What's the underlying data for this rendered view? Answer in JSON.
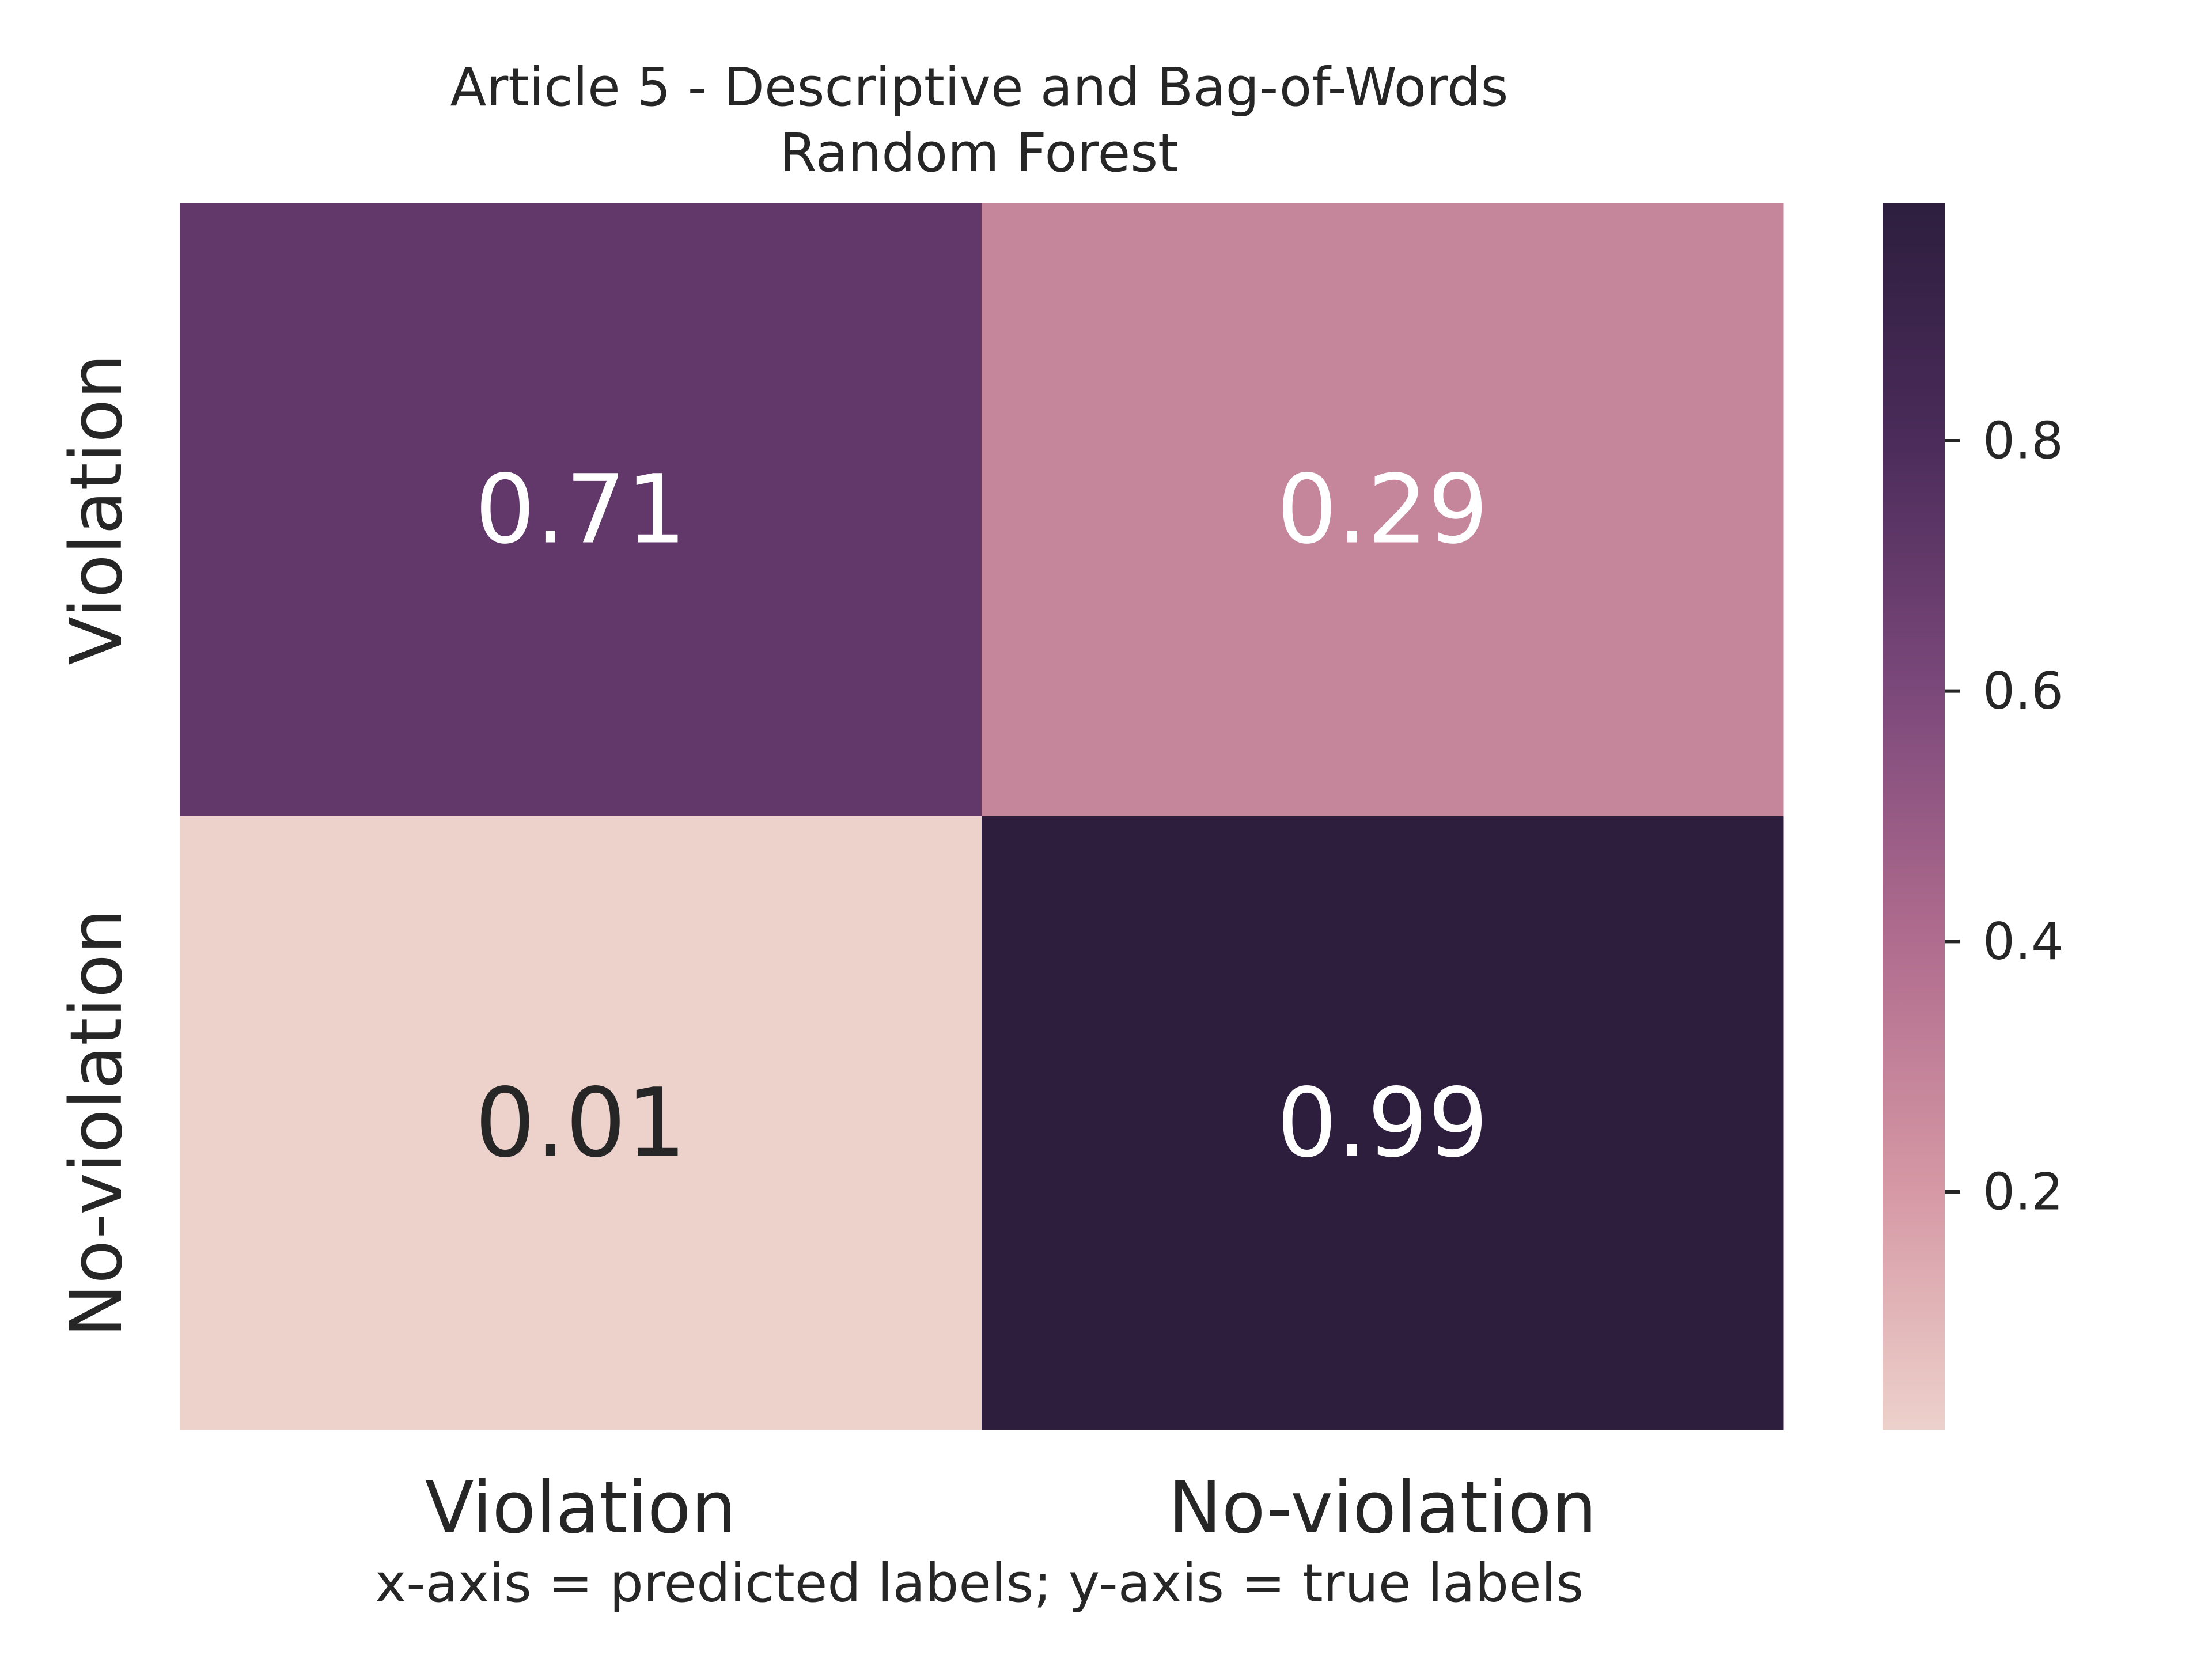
{
  "chart_data": {
    "type": "heatmap",
    "title": "Article 5 - Descriptive and Bag-of-Words",
    "subtitle": "Random Forest",
    "xlabel": "x-axis = predicted labels; y-axis = true labels",
    "ylabel": "",
    "x_categories": [
      "Violation",
      "No-violation"
    ],
    "y_categories": [
      "Violation",
      "No-violation"
    ],
    "values": [
      [
        0.71,
        0.29
      ],
      [
        0.01,
        0.99
      ]
    ],
    "cell_labels": [
      [
        "0.71",
        "0.29"
      ],
      [
        "0.01",
        "0.99"
      ]
    ],
    "colorbar": {
      "range": [
        0.01,
        0.99
      ],
      "ticks": [
        0.2,
        0.4,
        0.6,
        0.8
      ],
      "tick_labels": [
        "0.2",
        "0.4",
        "0.6",
        "0.8"
      ],
      "colormap": [
        "#edd1cb",
        "#d597a4",
        "#b06c8e",
        "#7c497b",
        "#4c2c5b",
        "#2d1e3e"
      ]
    },
    "grid": false,
    "legend": "colorbar-right"
  }
}
